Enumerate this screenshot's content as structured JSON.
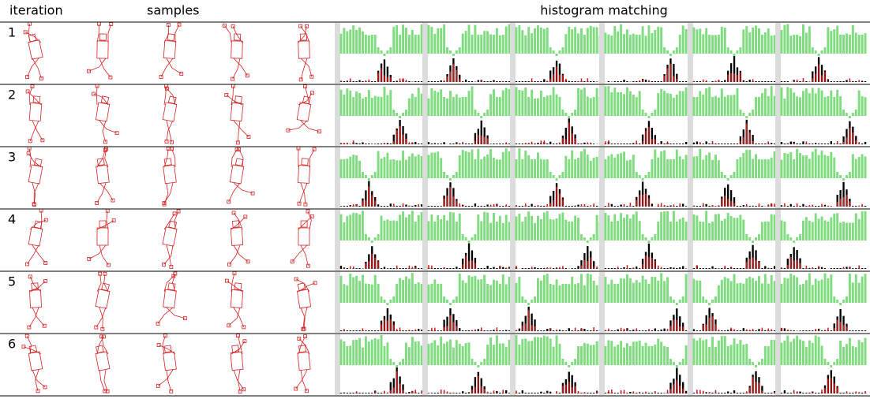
{
  "columns": [
    "iteration",
    "samples",
    "histogram matching"
  ],
  "rows": [
    "1",
    "2",
    "3",
    "4",
    "5",
    "6"
  ]
}
